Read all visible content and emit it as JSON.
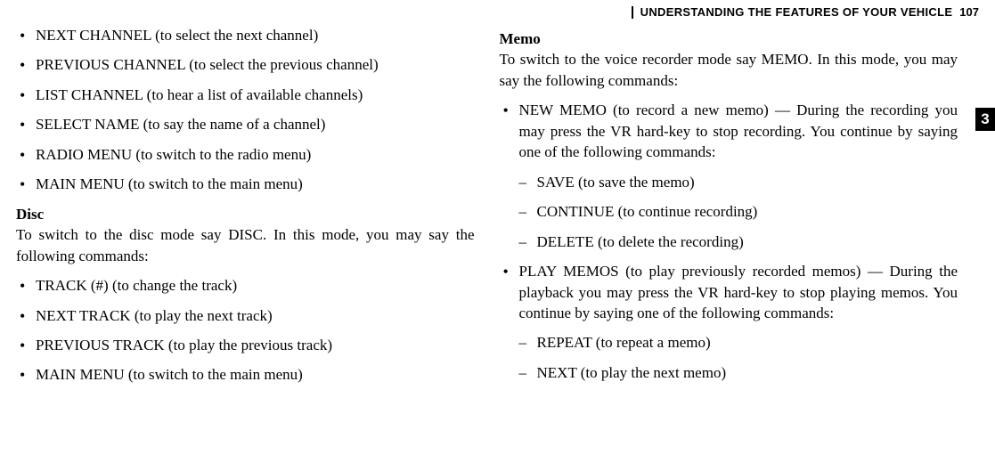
{
  "header": {
    "title": "UNDERSTANDING THE FEATURES OF YOUR VEHICLE",
    "page": "107",
    "section_tab": "3"
  },
  "left": {
    "bullets1": [
      "NEXT CHANNEL (to select the next channel)",
      "PREVIOUS CHANNEL (to select the previous channel)",
      "LIST CHANNEL (to hear a list of available channels)",
      "SELECT NAME (to say the name of a channel)",
      "RADIO MENU (to switch to the radio menu)",
      "MAIN MENU (to switch to the main menu)"
    ],
    "disc_heading": "Disc",
    "disc_body": "To switch to the disc mode say DISC. In this mode, you may say the following commands:",
    "bullets2": [
      "TRACK (#) (to change the track)",
      "NEXT TRACK (to play the next track)",
      "PREVIOUS TRACK (to play the previous track)",
      "MAIN MENU (to switch to the main menu)"
    ]
  },
  "right": {
    "memo_heading": "Memo",
    "memo_body": "To switch to the voice recorder mode say MEMO. In this mode, you may say the following commands:",
    "bullet1": "NEW MEMO (to record a new memo) — During the recording you may press the VR hard-key to stop recording. You continue by saying one of the following commands:",
    "dash1": [
      "SAVE (to save the memo)",
      "CONTINUE (to continue recording)",
      "DELETE (to delete the recording)"
    ],
    "bullet2": "PLAY MEMOS (to play previously recorded memos) — During the playback you may press the VR hard-key to stop playing memos. You continue by saying one of the following commands:",
    "dash2": [
      "REPEAT (to repeat a memo)",
      "NEXT (to play the next memo)"
    ]
  }
}
